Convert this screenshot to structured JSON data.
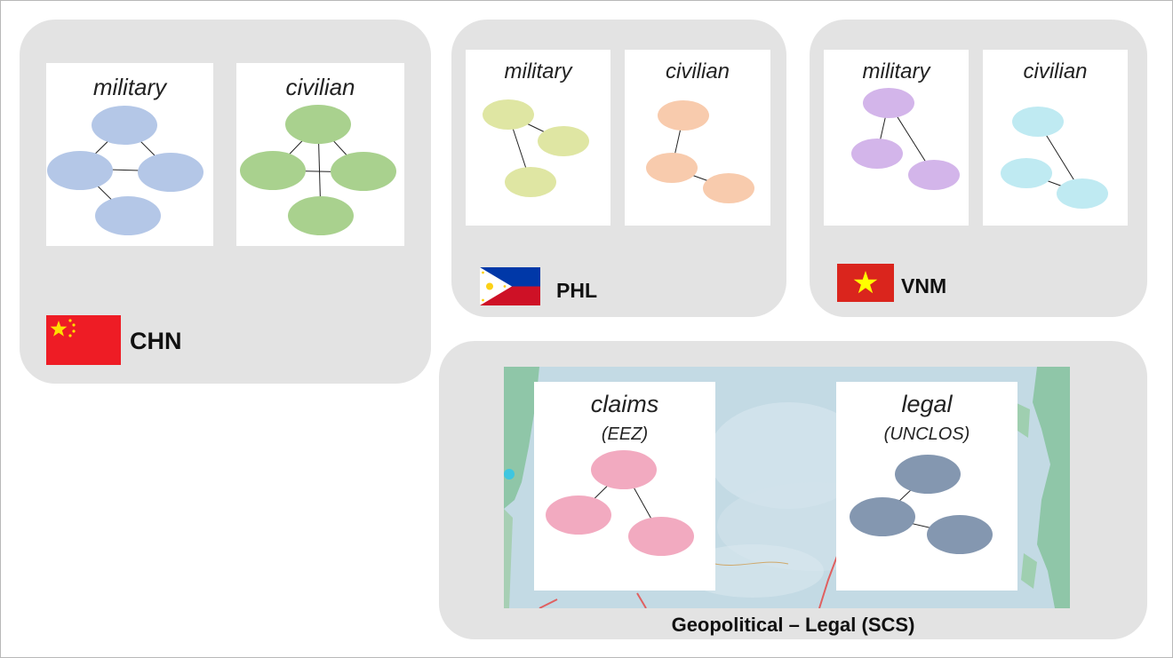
{
  "groups": {
    "chn": {
      "code": "CHN",
      "cards": {
        "military": "military",
        "civilian": "civilian"
      },
      "military_color": "#b4c7e7",
      "civilian_color": "#a9d18e",
      "flag": "china-flag"
    },
    "phl": {
      "code": "PHL",
      "cards": {
        "military": "military",
        "civilian": "civilian"
      },
      "military_color": "#dfe6a3",
      "civilian_color": "#f8cbad",
      "flag": "philippines-flag"
    },
    "vnm": {
      "code": "VNM",
      "cards": {
        "military": "military",
        "civilian": "civilian"
      },
      "military_color": "#d3b5ea",
      "civilian_color": "#bfeaf2",
      "flag": "vietnam-flag"
    },
    "scs": {
      "label": "Geopolitical – Legal (SCS)",
      "claims": {
        "title": "claims",
        "subtitle": "(EEZ)"
      },
      "legal": {
        "title": "legal",
        "subtitle": "(UNCLOS)"
      },
      "claims_color": "#f2aac0",
      "legal_color": "#8497b0"
    }
  }
}
